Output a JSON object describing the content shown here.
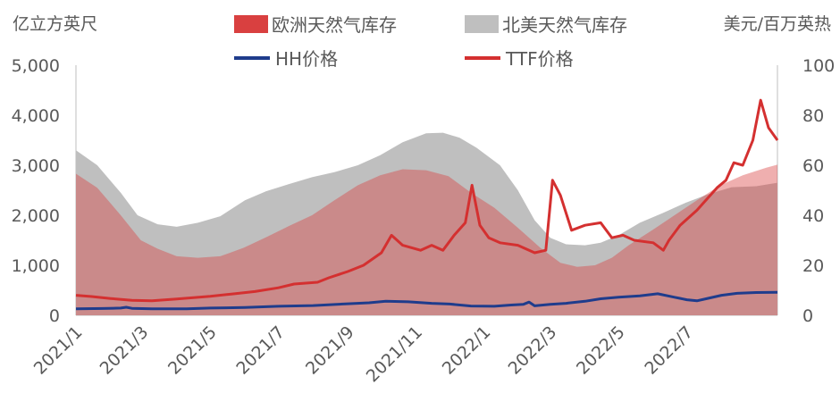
{
  "chart_data": {
    "type": "area",
    "left_axis_unit": "亿立方英尺",
    "right_axis_unit": "美元/百万英热",
    "left_ticks": [
      "0",
      "1,000",
      "2,000",
      "3,000",
      "4,000",
      "5,000"
    ],
    "right_ticks": [
      "0",
      "20",
      "40",
      "60",
      "80",
      "100"
    ],
    "ylim_left": [
      0,
      5000
    ],
    "ylim_right": [
      0,
      100
    ],
    "x_ticks": [
      "2021/1",
      "2021/3",
      "2021/5",
      "2021/7",
      "2021/9",
      "2021/11",
      "2022/1",
      "2022/3",
      "2022/5",
      "2022/7"
    ],
    "x_range": [
      "2021-01-01",
      "2022-09-20"
    ],
    "colors": {
      "eu": "#d94040",
      "us": "#bfbfbf",
      "hh": "#1f3c8c",
      "ttf": "#d43030",
      "axis": "#bfbfbf"
    },
    "legend": {
      "eu": "欧洲天然气库存",
      "us": "北美天然气库存",
      "hh": "HH价格",
      "ttf": "TTF价格"
    },
    "series": [
      {
        "name": "北美天然气库存",
        "axis": "left",
        "style": "area",
        "points": [
          [
            "2021-01-01",
            3300
          ],
          [
            "2021-01-20",
            3000
          ],
          [
            "2021-02-10",
            2450
          ],
          [
            "2021-02-25",
            2000
          ],
          [
            "2021-03-15",
            1820
          ],
          [
            "2021-04-01",
            1770
          ],
          [
            "2021-04-20",
            1850
          ],
          [
            "2021-05-10",
            1980
          ],
          [
            "2021-06-01",
            2300
          ],
          [
            "2021-06-20",
            2480
          ],
          [
            "2021-07-10",
            2620
          ],
          [
            "2021-07-31",
            2760
          ],
          [
            "2021-08-20",
            2860
          ],
          [
            "2021-09-10",
            3000
          ],
          [
            "2021-09-30",
            3200
          ],
          [
            "2021-10-20",
            3460
          ],
          [
            "2021-11-10",
            3640
          ],
          [
            "2021-11-25",
            3650
          ],
          [
            "2021-12-10",
            3550
          ],
          [
            "2021-12-25",
            3350
          ],
          [
            "2022-01-15",
            3000
          ],
          [
            "2022-01-31",
            2500
          ],
          [
            "2022-02-15",
            1900
          ],
          [
            "2022-03-01",
            1550
          ],
          [
            "2022-03-15",
            1420
          ],
          [
            "2022-04-01",
            1400
          ],
          [
            "2022-04-15",
            1450
          ],
          [
            "2022-05-01",
            1600
          ],
          [
            "2022-05-20",
            1850
          ],
          [
            "2022-06-10",
            2050
          ],
          [
            "2022-06-30",
            2250
          ],
          [
            "2022-07-20",
            2420
          ],
          [
            "2022-08-10",
            2560
          ],
          [
            "2022-09-01",
            2580
          ],
          [
            "2022-09-20",
            2650
          ]
        ]
      },
      {
        "name": "欧洲天然气库存",
        "axis": "left",
        "style": "area",
        "points": [
          [
            "2021-01-01",
            2830
          ],
          [
            "2021-01-20",
            2550
          ],
          [
            "2021-02-10",
            2000
          ],
          [
            "2021-02-28",
            1500
          ],
          [
            "2021-03-15",
            1330
          ],
          [
            "2021-04-01",
            1180
          ],
          [
            "2021-04-20",
            1150
          ],
          [
            "2021-05-10",
            1180
          ],
          [
            "2021-05-31",
            1350
          ],
          [
            "2021-06-20",
            1560
          ],
          [
            "2021-07-10",
            1780
          ],
          [
            "2021-07-31",
            2000
          ],
          [
            "2021-08-20",
            2300
          ],
          [
            "2021-09-10",
            2600
          ],
          [
            "2021-09-30",
            2800
          ],
          [
            "2021-10-20",
            2920
          ],
          [
            "2021-11-10",
            2900
          ],
          [
            "2021-11-30",
            2780
          ],
          [
            "2021-12-20",
            2450
          ],
          [
            "2022-01-10",
            2150
          ],
          [
            "2022-01-31",
            1750
          ],
          [
            "2022-02-20",
            1350
          ],
          [
            "2022-03-10",
            1050
          ],
          [
            "2022-03-25",
            970
          ],
          [
            "2022-04-10",
            1000
          ],
          [
            "2022-04-25",
            1150
          ],
          [
            "2022-05-10",
            1400
          ],
          [
            "2022-05-31",
            1700
          ],
          [
            "2022-06-20",
            2000
          ],
          [
            "2022-07-10",
            2300
          ],
          [
            "2022-07-31",
            2600
          ],
          [
            "2022-08-20",
            2800
          ],
          [
            "2022-09-10",
            2950
          ],
          [
            "2022-09-20",
            3010
          ]
        ]
      },
      {
        "name": "HH价格",
        "axis": "right",
        "style": "line",
        "points": [
          [
            "2021-01-01",
            2.6
          ],
          [
            "2021-01-25",
            2.7
          ],
          [
            "2021-02-10",
            2.9
          ],
          [
            "2021-02-15",
            3.2
          ],
          [
            "2021-02-20",
            2.8
          ],
          [
            "2021-03-10",
            2.6
          ],
          [
            "2021-04-10",
            2.6
          ],
          [
            "2021-05-01",
            2.9
          ],
          [
            "2021-06-01",
            3.1
          ],
          [
            "2021-07-01",
            3.6
          ],
          [
            "2021-08-01",
            3.9
          ],
          [
            "2021-09-01",
            4.6
          ],
          [
            "2021-09-20",
            5.0
          ],
          [
            "2021-10-05",
            5.6
          ],
          [
            "2021-10-25",
            5.4
          ],
          [
            "2021-11-15",
            4.8
          ],
          [
            "2021-12-01",
            4.5
          ],
          [
            "2021-12-20",
            3.7
          ],
          [
            "2022-01-10",
            3.6
          ],
          [
            "2022-01-25",
            4.1
          ],
          [
            "2022-02-05",
            4.4
          ],
          [
            "2022-02-10",
            5.3
          ],
          [
            "2022-02-15",
            3.8
          ],
          [
            "2022-03-01",
            4.4
          ],
          [
            "2022-03-15",
            4.8
          ],
          [
            "2022-04-01",
            5.6
          ],
          [
            "2022-04-15",
            6.6
          ],
          [
            "2022-05-01",
            7.2
          ],
          [
            "2022-05-20",
            7.8
          ],
          [
            "2022-06-05",
            8.6
          ],
          [
            "2022-06-20",
            7.2
          ],
          [
            "2022-07-01",
            6.2
          ],
          [
            "2022-07-10",
            5.8
          ],
          [
            "2022-07-20",
            6.8
          ],
          [
            "2022-08-01",
            8.0
          ],
          [
            "2022-08-15",
            8.8
          ],
          [
            "2022-09-01",
            9.1
          ],
          [
            "2022-09-20",
            9.2
          ]
        ]
      },
      {
        "name": "TTF价格",
        "axis": "right",
        "style": "line",
        "points": [
          [
            "2021-01-01",
            8
          ],
          [
            "2021-01-15",
            7.5
          ],
          [
            "2021-02-01",
            6.7
          ],
          [
            "2021-02-20",
            6
          ],
          [
            "2021-03-10",
            5.8
          ],
          [
            "2021-04-01",
            6.5
          ],
          [
            "2021-05-01",
            7.6
          ],
          [
            "2021-05-20",
            8.5
          ],
          [
            "2021-06-10",
            9.5
          ],
          [
            "2021-07-01",
            11
          ],
          [
            "2021-07-15",
            12.5
          ],
          [
            "2021-08-05",
            13.2
          ],
          [
            "2021-08-15",
            15
          ],
          [
            "2021-09-01",
            17.5
          ],
          [
            "2021-09-15",
            20
          ],
          [
            "2021-10-01",
            25
          ],
          [
            "2021-10-10",
            32
          ],
          [
            "2021-10-20",
            28
          ],
          [
            "2021-11-05",
            26
          ],
          [
            "2021-11-15",
            28
          ],
          [
            "2021-11-25",
            26
          ],
          [
            "2021-12-05",
            32
          ],
          [
            "2021-12-15",
            37
          ],
          [
            "2021-12-21",
            52
          ],
          [
            "2021-12-28",
            36
          ],
          [
            "2022-01-05",
            31
          ],
          [
            "2022-01-15",
            29
          ],
          [
            "2022-01-31",
            28
          ],
          [
            "2022-02-15",
            25
          ],
          [
            "2022-02-25",
            26
          ],
          [
            "2022-03-03",
            54
          ],
          [
            "2022-03-10",
            48
          ],
          [
            "2022-03-20",
            34
          ],
          [
            "2022-04-01",
            36
          ],
          [
            "2022-04-15",
            37
          ],
          [
            "2022-04-25",
            31
          ],
          [
            "2022-05-05",
            32
          ],
          [
            "2022-05-15",
            30
          ],
          [
            "2022-06-01",
            29
          ],
          [
            "2022-06-10",
            26
          ],
          [
            "2022-06-15",
            30
          ],
          [
            "2022-06-25",
            36
          ],
          [
            "2022-07-10",
            42
          ],
          [
            "2022-07-20",
            47
          ],
          [
            "2022-07-28",
            51
          ],
          [
            "2022-08-05",
            54
          ],
          [
            "2022-08-12",
            61
          ],
          [
            "2022-08-20",
            60
          ],
          [
            "2022-08-29",
            70
          ],
          [
            "2022-09-05",
            86
          ],
          [
            "2022-09-12",
            75
          ],
          [
            "2022-09-20",
            70
          ]
        ]
      }
    ],
    "grid": false,
    "legend_position": "top"
  }
}
